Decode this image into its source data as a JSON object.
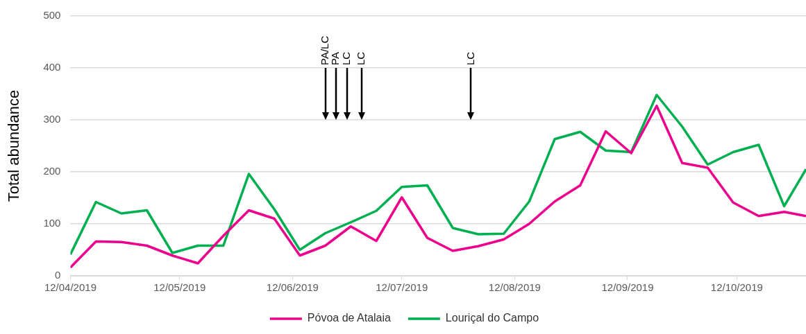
{
  "chart_data": {
    "type": "line",
    "ylabel": "Total abundance",
    "x": [
      "2019-04-12",
      "2019-04-19",
      "2019-04-26",
      "2019-05-03",
      "2019-05-10",
      "2019-05-17",
      "2019-05-24",
      "2019-05-31",
      "2019-06-07",
      "2019-06-14",
      "2019-06-21",
      "2019-06-28",
      "2019-07-05",
      "2019-07-12",
      "2019-07-19",
      "2019-07-26",
      "2019-08-02",
      "2019-08-09",
      "2019-08-16",
      "2019-08-23",
      "2019-08-30",
      "2019-09-06",
      "2019-09-13",
      "2019-09-20",
      "2019-09-27",
      "2019-10-04",
      "2019-10-11",
      "2019-10-18",
      "2019-10-25",
      "2019-10-31"
    ],
    "series": [
      {
        "name": "Póvoa de Atalaia",
        "color": "#ec008c",
        "values": [
          16,
          66,
          65,
          58,
          39,
          24,
          77,
          126,
          110,
          39,
          58,
          95,
          67,
          151,
          73,
          48,
          57,
          70,
          100,
          143,
          174,
          278,
          236,
          327,
          217,
          208,
          141,
          115,
          123,
          115
        ]
      },
      {
        "name": "Louriçal do Campo",
        "color": "#00b050",
        "values": [
          41,
          142,
          120,
          126,
          44,
          58,
          58,
          196,
          128,
          50,
          82,
          103,
          125,
          171,
          174,
          92,
          80,
          81,
          143,
          263,
          277,
          241,
          238,
          348,
          287,
          214,
          238,
          252,
          134,
          205
        ]
      }
    ],
    "xlim": [
      "2019-04-12",
      "2019-10-31"
    ],
    "xticks": [
      {
        "value": "2019-04-12",
        "label": "12/04/2019"
      },
      {
        "value": "2019-05-12",
        "label": "12/05/2019"
      },
      {
        "value": "2019-06-12",
        "label": "12/06/2019"
      },
      {
        "value": "2019-07-12",
        "label": "12/07/2019"
      },
      {
        "value": "2019-08-12",
        "label": "12/08/2019"
      },
      {
        "value": "2019-09-12",
        "label": "12/09/2019"
      },
      {
        "value": "2019-10-12",
        "label": "12/10/2019"
      }
    ],
    "ylim": [
      0,
      500
    ],
    "yticks": [
      0,
      100,
      200,
      300,
      400,
      500
    ],
    "ref_lines": [
      {
        "axis": "x",
        "value": "2019-06-21",
        "label": "PA/LC"
      },
      {
        "axis": "x",
        "value": "2019-06-24",
        "label": "PA"
      },
      {
        "axis": "x",
        "value": "2019-06-27",
        "label": "LC"
      },
      {
        "axis": "x",
        "value": "2019-07-01",
        "label": "LC"
      },
      {
        "axis": "x",
        "value": "2019-07-31",
        "label": "LC"
      }
    ],
    "grid": "y",
    "legend": "bottom",
    "marker": "none",
    "line_style": "solid"
  }
}
